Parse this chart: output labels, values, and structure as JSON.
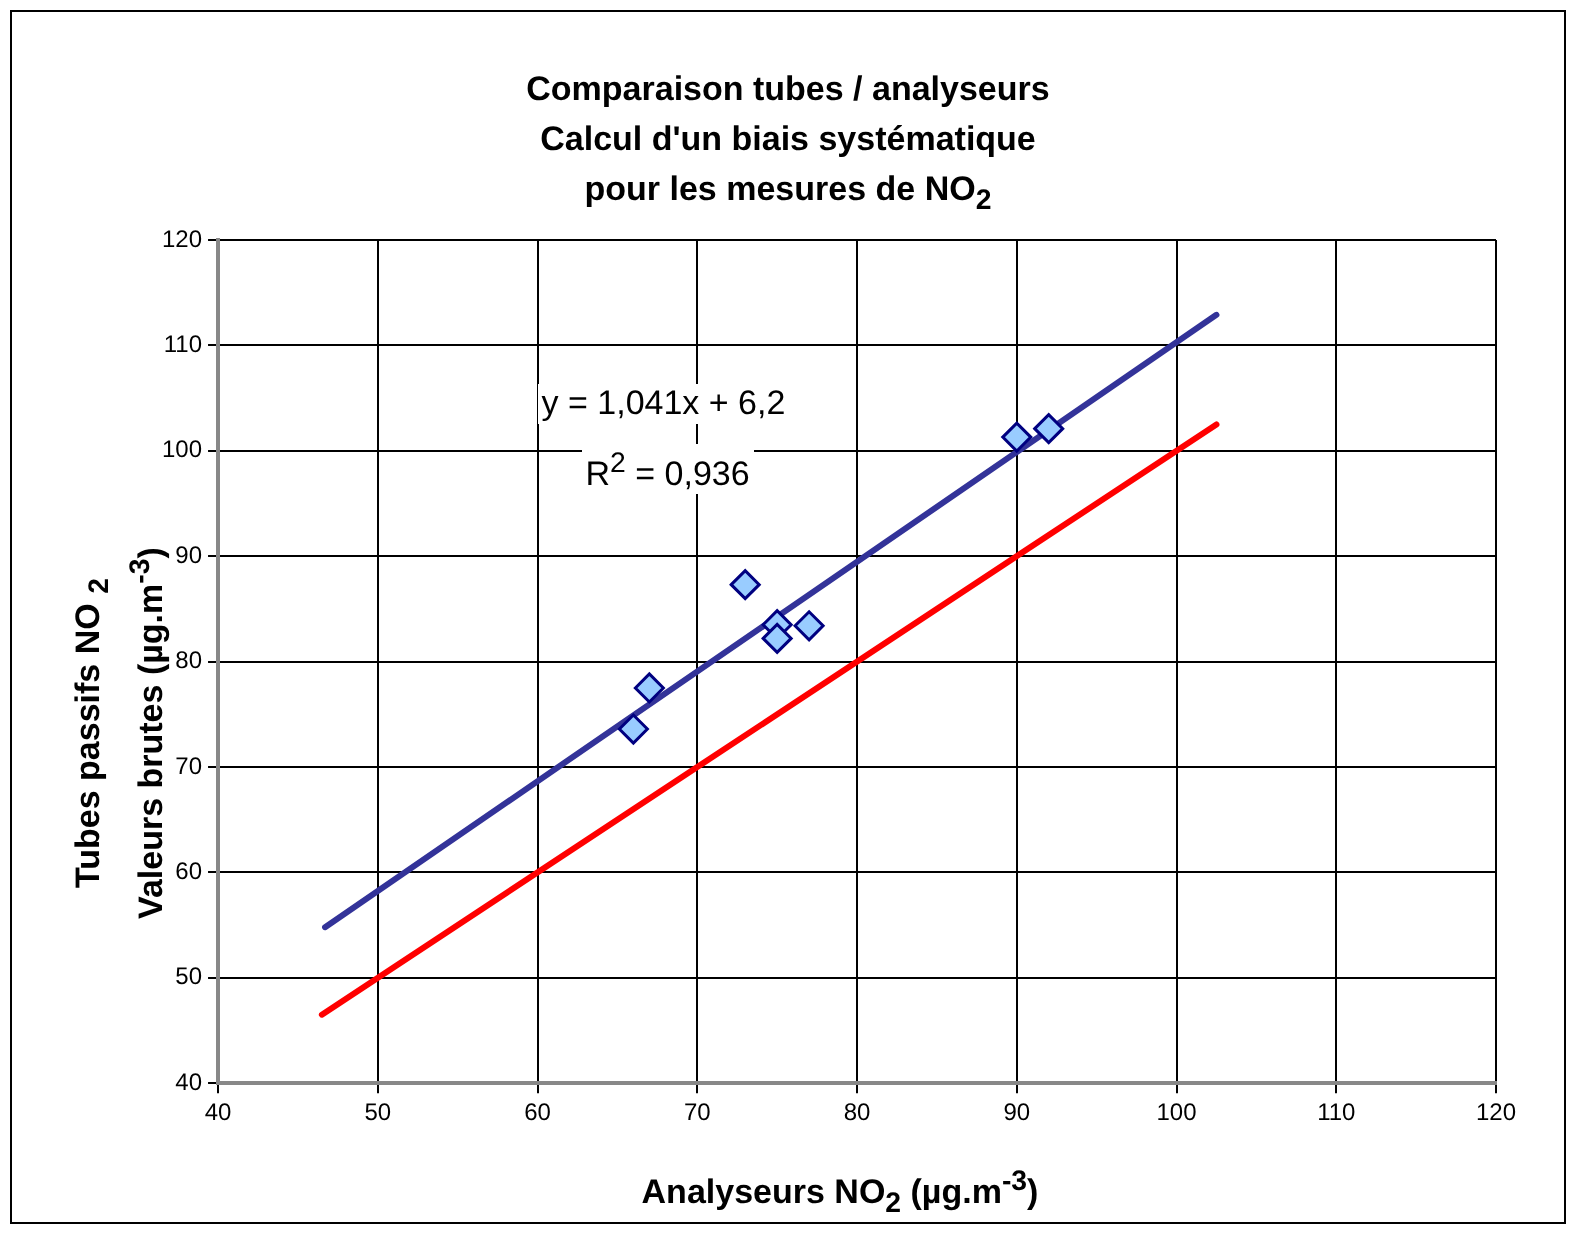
{
  "chart_data": {
    "type": "scatter",
    "title": "Comparaison tubes / analyseurs\nCalcul d'un biais systématique\npour les mesures de NO$_{2}$",
    "xlabel": "Analyseurs NO$_{2}$  (µg.m$^{-3}$)",
    "ylabel": "Tubes passifs NO $_{2}$\nValeurs brutes (µg.m$^{-3}$)",
    "annotations": [
      "y = 1,041x + 6,2",
      "R$^{2}$ = 0,936"
    ],
    "xlim": [
      40,
      120
    ],
    "xticks": [
      40,
      50,
      60,
      70,
      80,
      90,
      100,
      110,
      120
    ],
    "ylim": [
      40,
      120
    ],
    "yticks": [
      40,
      50,
      60,
      70,
      80,
      90,
      100,
      110,
      120
    ],
    "grid": true,
    "legend": false,
    "series": [
      {
        "type": "scatter",
        "color": "#99ccff",
        "marker": "diamond",
        "x": [
          66,
          67,
          73,
          75,
          75,
          77,
          90,
          92
        ],
        "values": [
          73.6,
          77.5,
          87.3,
          83.5,
          82.2,
          83.4,
          101.3,
          102.1
        ]
      },
      {
        "type": "line",
        "color": "#333399",
        "marker": "none",
        "x": [
          46.7,
          102.5
        ],
        "values": [
          54.8,
          112.9
        ]
      },
      {
        "type": "line",
        "color": "#ff0000",
        "marker": "none",
        "x": [
          46.5,
          102.5
        ],
        "values": [
          46.5,
          102.5
        ]
      }
    ]
  }
}
